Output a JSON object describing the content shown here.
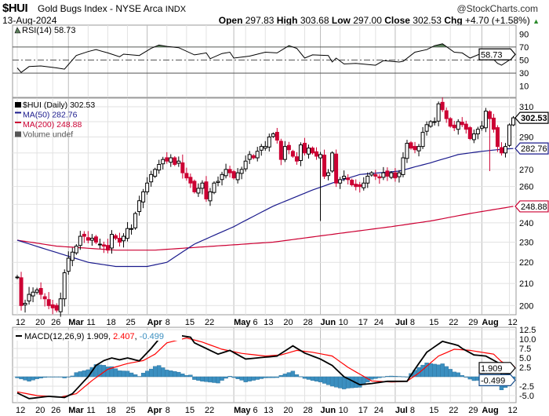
{
  "header": {
    "symbol": "$HUI",
    "name": "Gold Bugs Index - NYSE Arca",
    "exchange": "INDX",
    "brand": "@StockCharts.com",
    "date": "13-Aug-2024",
    "open_label": "Open",
    "open": "297.83",
    "high_label": "High",
    "high": "303.68",
    "low_label": "Low",
    "low": "297.00",
    "close_label": "Close",
    "close": "302.53",
    "chg_label": "Chg",
    "chg": "+4.70 (+1.58%)",
    "up_arrow": "▲"
  },
  "chart_data": [
    {
      "type": "candlestick",
      "title": "$HUI (Daily) 302.53",
      "scale": "log",
      "ylim": [
        195,
        315
      ],
      "yticks": [
        200,
        210,
        220,
        230,
        240,
        250,
        260,
        270,
        280,
        290,
        300,
        310
      ],
      "ytick_labels_shown": [
        200,
        210,
        220,
        230,
        240,
        260,
        270,
        290,
        310
      ],
      "closes": [
        213,
        200,
        201,
        205,
        206,
        207,
        205,
        203,
        200,
        199,
        198,
        203,
        215,
        222,
        225,
        228,
        233,
        233,
        231,
        232,
        230,
        229,
        228,
        226,
        234,
        232,
        230,
        233,
        237,
        237,
        245,
        252,
        257,
        262,
        267,
        270,
        273,
        276,
        275,
        277,
        273,
        275,
        268,
        265,
        262,
        257,
        259,
        262,
        253,
        257,
        262,
        263,
        267,
        270,
        268,
        265,
        268,
        270,
        275,
        279,
        277,
        281,
        284,
        284,
        290,
        292,
        288,
        276,
        284,
        282,
        278,
        275,
        285,
        280,
        283,
        280,
        278,
        279,
        266,
        268,
        280,
        262,
        264,
        266,
        264,
        261,
        260,
        260,
        262,
        266,
        268,
        266,
        265,
        268,
        266,
        268,
        265,
        268,
        277,
        286,
        283,
        282,
        284,
        293,
        298,
        300,
        300,
        312,
        308,
        302,
        297,
        296,
        300,
        298,
        295,
        289,
        292,
        295,
        297,
        307,
        302,
        295,
        284,
        280,
        284,
        297.83,
        302.53
      ],
      "last_bar": {
        "open": 297.83,
        "high": 303.68,
        "low": 297.0,
        "close": 302.53
      },
      "extremes": {
        "42": {
          "high": 279
        },
        "77": {
          "low": 241
        },
        "120": {
          "low": 269
        }
      },
      "legend": [
        {
          "label": "$HUI (Daily) 302.53",
          "color": "#000000"
        },
        {
          "label": "MA(50) 282.76",
          "color": "#1a1a8c"
        },
        {
          "label": "MA(200) 248.88",
          "color": "#cc0033"
        },
        {
          "label": "Volume undef",
          "color": "#555555"
        }
      ],
      "ma50": [
        [
          0,
          231
        ],
        [
          8,
          226
        ],
        [
          18,
          220
        ],
        [
          25,
          218
        ],
        [
          33,
          218
        ],
        [
          38,
          220
        ],
        [
          45,
          229
        ],
        [
          55,
          238
        ],
        [
          65,
          249
        ],
        [
          75,
          258
        ],
        [
          80,
          262
        ],
        [
          87,
          267
        ],
        [
          97,
          269
        ],
        [
          105,
          274
        ],
        [
          112,
          279
        ],
        [
          118,
          281
        ],
        [
          122,
          282
        ],
        [
          126,
          282.76
        ]
      ],
      "ma200": [
        [
          0,
          231
        ],
        [
          10,
          228
        ],
        [
          25,
          226
        ],
        [
          35,
          226
        ],
        [
          50,
          228
        ],
        [
          65,
          230
        ],
        [
          80,
          234
        ],
        [
          95,
          238
        ],
        [
          105,
          241
        ],
        [
          115,
          245
        ],
        [
          126,
          248.88
        ]
      ],
      "value_tags": [
        {
          "text": "302.53",
          "value": 302.53,
          "color": "#000000"
        },
        {
          "text": "282.76",
          "value": 282.76,
          "color": "#1a1a8c"
        },
        {
          "text": "248.88",
          "value": 248.88,
          "color": "#cc0033"
        }
      ],
      "up_color": "#ffffff",
      "down_color": "#cc0033"
    },
    {
      "type": "line",
      "title": "RSI(14) 58.73",
      "ylim": [
        0,
        100
      ],
      "yticks": [
        10,
        30,
        50,
        70,
        90
      ],
      "overbought": 70,
      "oversold": 30,
      "mid": 50,
      "values": [
        [
          0,
          38
        ],
        [
          1,
          31
        ],
        [
          3,
          40
        ],
        [
          6,
          41
        ],
        [
          10,
          38
        ],
        [
          12,
          36
        ],
        [
          15,
          57
        ],
        [
          18,
          63
        ],
        [
          20,
          66
        ],
        [
          23,
          61
        ],
        [
          26,
          55
        ],
        [
          27,
          59
        ],
        [
          31,
          57
        ],
        [
          34,
          68
        ],
        [
          36,
          73
        ],
        [
          38,
          71
        ],
        [
          41,
          69
        ],
        [
          45,
          58
        ],
        [
          48,
          61
        ],
        [
          49,
          52
        ],
        [
          52,
          60
        ],
        [
          54,
          62
        ],
        [
          55,
          53
        ],
        [
          59,
          56
        ],
        [
          63,
          62
        ],
        [
          66,
          61
        ],
        [
          69,
          72
        ],
        [
          71,
          68
        ],
        [
          73,
          53
        ],
        [
          75,
          58
        ],
        [
          79,
          57
        ],
        [
          80,
          47
        ],
        [
          81,
          53
        ],
        [
          83,
          44
        ],
        [
          86,
          45
        ],
        [
          91,
          42
        ],
        [
          93,
          49
        ],
        [
          97,
          47
        ],
        [
          98,
          48
        ],
        [
          101,
          62
        ],
        [
          104,
          66
        ],
        [
          106,
          72
        ],
        [
          108,
          75
        ],
        [
          111,
          62
        ],
        [
          113,
          61
        ],
        [
          115,
          53
        ],
        [
          119,
          63
        ],
        [
          122,
          45
        ],
        [
          123,
          42
        ],
        [
          125,
          50
        ],
        [
          126,
          58.73
        ]
      ],
      "value_tag": "58.73",
      "fill_color": "#5a7f5a"
    },
    {
      "type": "line+bar",
      "title": "MACD(12,26,9)",
      "legend_values": [
        "1.909",
        "2.407",
        "-0.499"
      ],
      "ylim": [
        -6.5,
        13
      ],
      "yticks": [
        -5.0,
        -2.5,
        0,
        2.5,
        5.0,
        7.5,
        10.0,
        12.5
      ],
      "ytick_labels": [
        "-5.0",
        "-2.5",
        "",
        "2.5",
        "5.0",
        "7.5",
        "10.0",
        "12.5"
      ],
      "macd": [
        [
          0,
          -4.3
        ],
        [
          3,
          -5.8
        ],
        [
          8,
          -5.2
        ],
        [
          12,
          -5.5
        ],
        [
          14,
          -4.5
        ],
        [
          18,
          0
        ],
        [
          20,
          3
        ],
        [
          22,
          4.3
        ],
        [
          24,
          5
        ],
        [
          26,
          4.5
        ],
        [
          28,
          5
        ],
        [
          31,
          4.2
        ],
        [
          34,
          7.5
        ],
        [
          36,
          10
        ],
        [
          38,
          10.8
        ],
        [
          41,
          11
        ],
        [
          44,
          10.5
        ],
        [
          45,
          9
        ],
        [
          47,
          8
        ],
        [
          51,
          6
        ],
        [
          54,
          7
        ],
        [
          58,
          4.7
        ],
        [
          61,
          5
        ],
        [
          66,
          5.5
        ],
        [
          70,
          8.2
        ],
        [
          73,
          6.3
        ],
        [
          77,
          4.7
        ],
        [
          80,
          3
        ],
        [
          83,
          0
        ],
        [
          87,
          -2.1
        ],
        [
          90,
          -1.8
        ],
        [
          94,
          -1.2
        ],
        [
          99,
          -1.2
        ],
        [
          101,
          2
        ],
        [
          104,
          6.5
        ],
        [
          108,
          9.4
        ],
        [
          112,
          8.3
        ],
        [
          113,
          7.5
        ],
        [
          116,
          5.8
        ],
        [
          119,
          5.5
        ],
        [
          122,
          3.8
        ],
        [
          123,
          0.5
        ],
        [
          125,
          0.7
        ],
        [
          126,
          1.909
        ]
      ],
      "signal": [
        [
          0,
          -4
        ],
        [
          5,
          -5
        ],
        [
          11,
          -5.4
        ],
        [
          15,
          -4.5
        ],
        [
          19,
          -1
        ],
        [
          23,
          2
        ],
        [
          28,
          3.5
        ],
        [
          32,
          4.3
        ],
        [
          35,
          6
        ],
        [
          38,
          9
        ],
        [
          43,
          10.3
        ],
        [
          47,
          9.2
        ],
        [
          52,
          7.3
        ],
        [
          57,
          6.2
        ],
        [
          63,
          5.5
        ],
        [
          67,
          5.8
        ],
        [
          71,
          7
        ],
        [
          75,
          6.5
        ],
        [
          80,
          5.5
        ],
        [
          84,
          2.5
        ],
        [
          90,
          -1.1
        ],
        [
          95,
          -1.4
        ],
        [
          99,
          -1.2
        ],
        [
          102,
          1
        ],
        [
          107,
          5.5
        ],
        [
          111,
          7.3
        ],
        [
          115,
          7
        ],
        [
          121,
          6
        ],
        [
          123,
          4
        ],
        [
          126,
          2.407
        ]
      ],
      "value_tags": [
        {
          "text": "1.909",
          "value": 1.909,
          "color": "#000000"
        },
        {
          "text": "-0.499",
          "value": -0.499,
          "color": "#1a4f8c"
        }
      ],
      "macd_color": "#000000",
      "signal_color": "#ff0000",
      "hist_color": "#3b8fc0"
    }
  ],
  "x_axis": {
    "ticks": [
      {
        "i": 0,
        "label": "12"
      },
      {
        "i": 5,
        "label": "20"
      },
      {
        "i": 9,
        "label": "26"
      },
      {
        "i": 13,
        "label": "Mar",
        "month": true
      },
      {
        "i": 18,
        "label": "11"
      },
      {
        "i": 23,
        "label": "18"
      },
      {
        "i": 28,
        "label": "25"
      },
      {
        "i": 33,
        "label": "Apr",
        "month": true
      },
      {
        "i": 38,
        "label": "8"
      },
      {
        "i": 43,
        "label": "15"
      },
      {
        "i": 48,
        "label": "22"
      },
      {
        "i": 55,
        "label": "May",
        "month": true
      },
      {
        "i": 58,
        "label": "6"
      },
      {
        "i": 63,
        "label": "13"
      },
      {
        "i": 68,
        "label": "20"
      },
      {
        "i": 73,
        "label": "28"
      },
      {
        "i": 77,
        "label": "Jun",
        "month": true
      },
      {
        "i": 82,
        "label": "10"
      },
      {
        "i": 87,
        "label": "17"
      },
      {
        "i": 91,
        "label": "24"
      },
      {
        "i": 96,
        "label": "Jul",
        "month": true
      },
      {
        "i": 100,
        "label": "8"
      },
      {
        "i": 105,
        "label": "15"
      },
      {
        "i": 110,
        "label": "22"
      },
      {
        "i": 115,
        "label": "29"
      },
      {
        "i": 118,
        "label": "Aug",
        "month": true
      },
      {
        "i": 125,
        "label": "12"
      }
    ]
  }
}
